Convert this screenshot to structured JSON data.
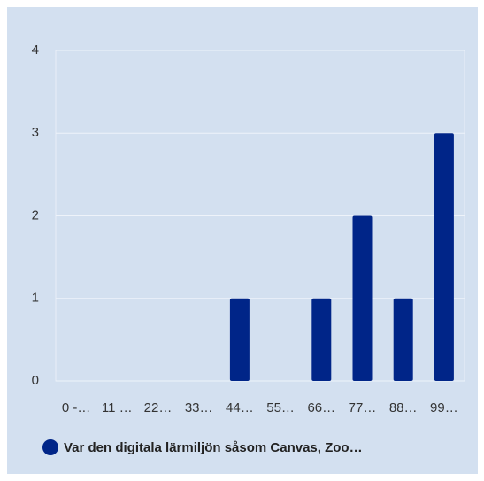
{
  "chart_data": {
    "type": "bar",
    "categories": [
      "0 -…",
      "11 …",
      "22…",
      "33…",
      "44…",
      "55…",
      "66…",
      "77…",
      "88…",
      "99…"
    ],
    "series": [
      {
        "name": "Var den digitala lärmiljön såsom Canvas, Zoo…",
        "color": "#002588",
        "values": [
          0,
          0,
          0,
          0,
          1,
          0,
          1,
          2,
          1,
          3
        ]
      }
    ],
    "ylim": [
      0,
      4
    ],
    "yticks": [
      0,
      1,
      2,
      3,
      4
    ],
    "grid": true
  }
}
